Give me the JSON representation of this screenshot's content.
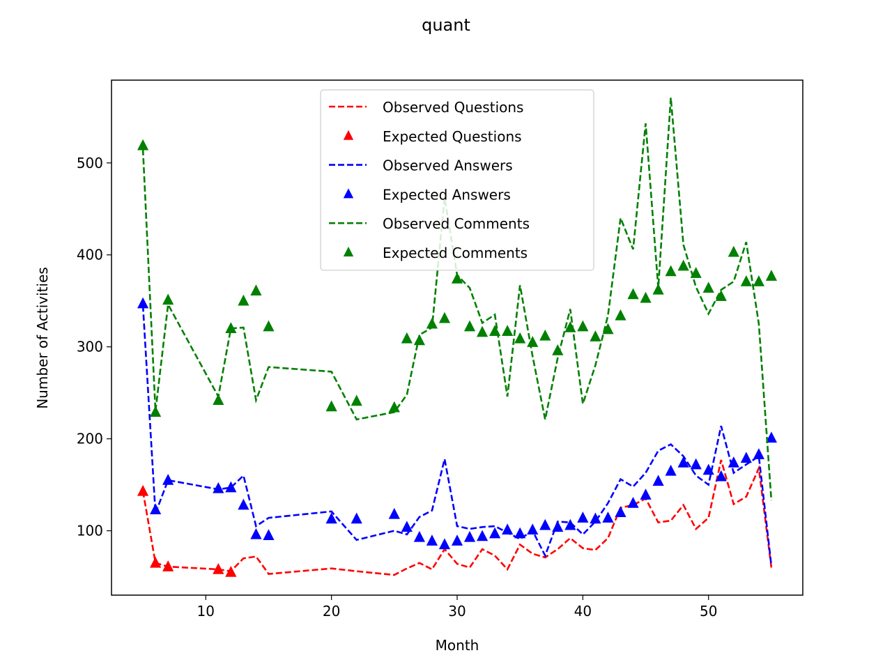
{
  "chart_data": {
    "type": "line",
    "title": "quant",
    "xlabel": "Month",
    "ylabel": "Number of Activities",
    "xlim": [
      2.5,
      57.5
    ],
    "ylim": [
      30,
      590
    ],
    "xticks": [
      10,
      20,
      30,
      40,
      50
    ],
    "yticks": [
      100,
      200,
      300,
      400,
      500
    ],
    "grid": false,
    "legend_position": "upper center",
    "series": [
      {
        "name": "Observed Questions",
        "style": "dashed",
        "color": "#ff0000",
        "points": [
          [
            5,
            143
          ],
          [
            6,
            65
          ],
          [
            7,
            61
          ],
          [
            11,
            58
          ],
          [
            12,
            56
          ],
          [
            13,
            70
          ],
          [
            14,
            72
          ],
          [
            15,
            53
          ],
          [
            20,
            59
          ],
          [
            22,
            56
          ],
          [
            25,
            52
          ],
          [
            26,
            59
          ],
          [
            27,
            65
          ],
          [
            28,
            58
          ],
          [
            29,
            80
          ],
          [
            30,
            64
          ],
          [
            31,
            60
          ],
          [
            32,
            80
          ],
          [
            33,
            73
          ],
          [
            34,
            58
          ],
          [
            35,
            85
          ],
          [
            36,
            75
          ],
          [
            37,
            71
          ],
          [
            38,
            80
          ],
          [
            39,
            92
          ],
          [
            40,
            81
          ],
          [
            41,
            79
          ],
          [
            42,
            92
          ],
          [
            43,
            125
          ],
          [
            44,
            128
          ],
          [
            45,
            135
          ],
          [
            46,
            109
          ],
          [
            47,
            111
          ],
          [
            48,
            128
          ],
          [
            49,
            102
          ],
          [
            50,
            114
          ],
          [
            51,
            177
          ],
          [
            52,
            129
          ],
          [
            53,
            137
          ],
          [
            54,
            168
          ],
          [
            55,
            60
          ]
        ]
      },
      {
        "name": "Expected Questions",
        "style": "markers",
        "color": "#ff0000",
        "points": [
          [
            5,
            143
          ],
          [
            6,
            65
          ],
          [
            7,
            61
          ],
          [
            11,
            58
          ],
          [
            12,
            55
          ]
        ]
      },
      {
        "name": "Observed Answers",
        "style": "dashed",
        "color": "#0000ff",
        "points": [
          [
            5,
            345
          ],
          [
            6,
            119
          ],
          [
            7,
            155
          ],
          [
            11,
            145
          ],
          [
            12,
            147
          ],
          [
            13,
            160
          ],
          [
            14,
            105
          ],
          [
            15,
            114
          ],
          [
            20,
            121
          ],
          [
            22,
            90
          ],
          [
            25,
            100
          ],
          [
            26,
            96
          ],
          [
            27,
            115
          ],
          [
            28,
            122
          ],
          [
            29,
            178
          ],
          [
            30,
            105
          ],
          [
            31,
            102
          ],
          [
            32,
            104
          ],
          [
            33,
            105
          ],
          [
            34,
            98
          ],
          [
            35,
            91
          ],
          [
            36,
            100
          ],
          [
            37,
            73
          ],
          [
            38,
            110
          ],
          [
            39,
            109
          ],
          [
            40,
            96
          ],
          [
            41,
            110
          ],
          [
            42,
            130
          ],
          [
            43,
            156
          ],
          [
            44,
            148
          ],
          [
            45,
            163
          ],
          [
            46,
            187
          ],
          [
            47,
            194
          ],
          [
            48,
            181
          ],
          [
            49,
            160
          ],
          [
            50,
            150
          ],
          [
            51,
            214
          ],
          [
            52,
            163
          ],
          [
            53,
            172
          ],
          [
            54,
            181
          ],
          [
            55,
            62
          ]
        ]
      },
      {
        "name": "Expected Answers",
        "style": "markers",
        "color": "#0000ff",
        "points": [
          [
            5,
            347
          ],
          [
            6,
            123
          ],
          [
            7,
            155
          ],
          [
            11,
            146
          ],
          [
            12,
            147
          ],
          [
            13,
            128
          ],
          [
            14,
            96
          ],
          [
            15,
            95
          ],
          [
            20,
            113
          ],
          [
            22,
            113
          ],
          [
            25,
            118
          ],
          [
            26,
            104
          ],
          [
            27,
            93
          ],
          [
            28,
            89
          ],
          [
            29,
            85
          ],
          [
            30,
            89
          ],
          [
            31,
            93
          ],
          [
            32,
            94
          ],
          [
            33,
            97
          ],
          [
            34,
            101
          ],
          [
            35,
            97
          ],
          [
            36,
            101
          ],
          [
            37,
            106
          ],
          [
            38,
            104
          ],
          [
            39,
            106
          ],
          [
            40,
            114
          ],
          [
            41,
            113
          ],
          [
            42,
            114
          ],
          [
            43,
            120
          ],
          [
            44,
            130
          ],
          [
            45,
            139
          ],
          [
            46,
            154
          ],
          [
            47,
            165
          ],
          [
            48,
            174
          ],
          [
            49,
            172
          ],
          [
            50,
            166
          ],
          [
            51,
            159
          ],
          [
            52,
            174
          ],
          [
            53,
            179
          ],
          [
            54,
            183
          ],
          [
            55,
            201
          ]
        ]
      },
      {
        "name": "Observed Comments",
        "style": "dashed",
        "color": "#008000",
        "points": [
          [
            5,
            515
          ],
          [
            6,
            230
          ],
          [
            7,
            346
          ],
          [
            11,
            246
          ],
          [
            12,
            320
          ],
          [
            13,
            321
          ],
          [
            14,
            242
          ],
          [
            15,
            278
          ],
          [
            20,
            273
          ],
          [
            22,
            221
          ],
          [
            25,
            229
          ],
          [
            26,
            248
          ],
          [
            27,
            313
          ],
          [
            28,
            321
          ],
          [
            29,
            462
          ],
          [
            30,
            378
          ],
          [
            31,
            364
          ],
          [
            32,
            326
          ],
          [
            33,
            335
          ],
          [
            34,
            246
          ],
          [
            35,
            367
          ],
          [
            36,
            290
          ],
          [
            37,
            221
          ],
          [
            38,
            288
          ],
          [
            39,
            341
          ],
          [
            40,
            238
          ],
          [
            41,
            280
          ],
          [
            42,
            334
          ],
          [
            43,
            440
          ],
          [
            44,
            406
          ],
          [
            45,
            543
          ],
          [
            46,
            364
          ],
          [
            47,
            571
          ],
          [
            48,
            411
          ],
          [
            49,
            365
          ],
          [
            50,
            336
          ],
          [
            51,
            362
          ],
          [
            52,
            371
          ],
          [
            53,
            414
          ],
          [
            54,
            325
          ],
          [
            55,
            133
          ]
        ]
      },
      {
        "name": "Expected Comments",
        "style": "markers",
        "color": "#008000",
        "points": [
          [
            5,
            519
          ],
          [
            6,
            229
          ],
          [
            7,
            351
          ],
          [
            11,
            242
          ],
          [
            12,
            320
          ],
          [
            13,
            350
          ],
          [
            14,
            361
          ],
          [
            15,
            322
          ],
          [
            20,
            235
          ],
          [
            22,
            241
          ],
          [
            25,
            234
          ],
          [
            26,
            309
          ],
          [
            27,
            307
          ],
          [
            28,
            325
          ],
          [
            29,
            331
          ],
          [
            30,
            374
          ],
          [
            31,
            322
          ],
          [
            32,
            316
          ],
          [
            33,
            317
          ],
          [
            34,
            317
          ],
          [
            35,
            309
          ],
          [
            36,
            305
          ],
          [
            37,
            312
          ],
          [
            38,
            296
          ],
          [
            39,
            321
          ],
          [
            40,
            322
          ],
          [
            41,
            311
          ],
          [
            42,
            319
          ],
          [
            43,
            334
          ],
          [
            44,
            357
          ],
          [
            45,
            353
          ],
          [
            46,
            362
          ],
          [
            47,
            382
          ],
          [
            48,
            388
          ],
          [
            49,
            380
          ],
          [
            50,
            364
          ],
          [
            51,
            355
          ],
          [
            52,
            403
          ],
          [
            53,
            371
          ],
          [
            54,
            371
          ],
          [
            55,
            377
          ]
        ]
      }
    ]
  }
}
